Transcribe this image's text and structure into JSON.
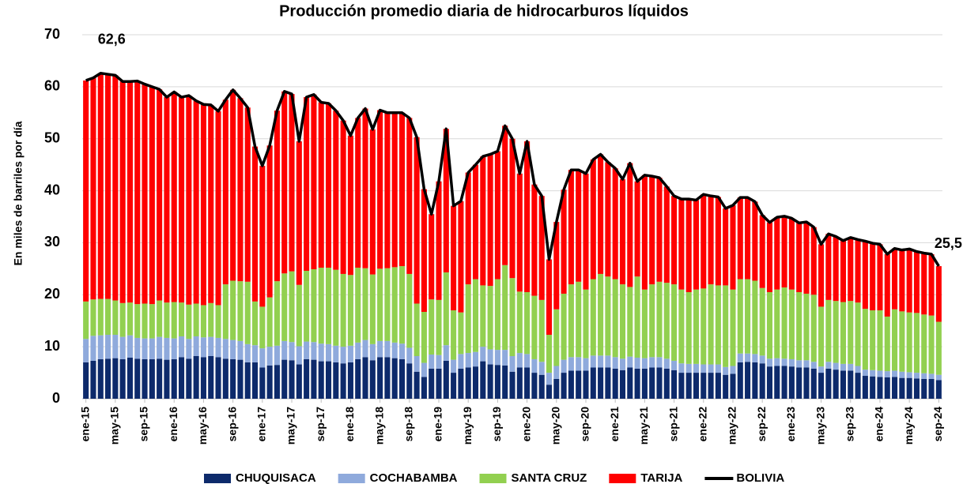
{
  "chart_data": {
    "type": "bar",
    "stacked": true,
    "title": "Producción promedio diaria de hidrocarburos líquidos",
    "y_label": "En miles de barriles por día",
    "ylim": [
      0,
      70
    ],
    "yticks": [
      0,
      10,
      20,
      30,
      40,
      50,
      60,
      70
    ],
    "grid": true,
    "legend": "bottom",
    "categories": [
      "ene-15",
      null,
      null,
      null,
      "may-15",
      null,
      null,
      null,
      "sep-15",
      null,
      null,
      null,
      "ene-16",
      null,
      null,
      null,
      "may-16",
      null,
      null,
      null,
      "sep-16",
      null,
      null,
      null,
      "ene-17",
      null,
      null,
      null,
      "may-17",
      null,
      null,
      null,
      "sep-17",
      null,
      null,
      null,
      "ene-18",
      null,
      null,
      null,
      "may-18",
      null,
      null,
      null,
      "sep-18",
      null,
      null,
      null,
      "ene-19",
      null,
      null,
      null,
      "may-19",
      null,
      null,
      null,
      "sep-19",
      null,
      null,
      null,
      "ene-20",
      null,
      null,
      null,
      "may-20",
      null,
      null,
      null,
      "sep-20",
      null,
      null,
      null,
      "ene-21",
      null,
      null,
      null,
      "may-21",
      null,
      null,
      null,
      "sep-21",
      null,
      null,
      null,
      "ene-22",
      null,
      null,
      null,
      "may-22",
      null,
      null,
      null,
      "sep-22",
      null,
      null,
      null,
      "ene-23",
      null,
      null,
      null,
      "may-23",
      null,
      null,
      null,
      "sep-23",
      null,
      null,
      null,
      "ene-24",
      null,
      null,
      null,
      "may-24",
      null,
      null,
      null,
      "sep-24"
    ],
    "series": [
      {
        "name": "CHUQUISACA",
        "color": "#0d2a6b",
        "values": [
          7.0,
          7.3,
          7.6,
          7.7,
          7.8,
          7.6,
          7.9,
          7.7,
          7.6,
          7.6,
          7.7,
          7.5,
          7.6,
          8.0,
          7.7,
          8.2,
          8.0,
          8.2,
          8.0,
          7.7,
          7.6,
          7.5,
          7.0,
          7.0,
          6.0,
          6.4,
          6.5,
          7.5,
          7.4,
          6.6,
          7.6,
          7.5,
          7.2,
          7.2,
          7.0,
          6.8,
          7.0,
          7.6,
          8.0,
          7.4,
          8.0,
          8.0,
          7.8,
          7.6,
          6.8,
          5.2,
          4.2,
          5.8,
          5.8,
          7.3,
          5.0,
          5.8,
          6.0,
          6.2,
          7.2,
          6.6,
          6.5,
          6.4,
          5.2,
          6.0,
          6.0,
          5.0,
          4.6,
          2.7,
          3.8,
          5.0,
          5.4,
          5.4,
          5.4,
          6.0,
          6.0,
          6.0,
          5.8,
          5.5,
          6.0,
          5.8,
          5.8,
          6.0,
          6.0,
          5.8,
          5.5,
          5.0,
          5.0,
          5.0,
          5.0,
          5.0,
          5.0,
          4.6,
          4.8,
          7.0,
          7.1,
          7.0,
          6.8,
          6.2,
          6.3,
          6.3,
          6.2,
          6.0,
          6.0,
          5.8,
          5.0,
          5.8,
          5.6,
          5.4,
          5.4,
          5.0,
          4.4,
          4.3,
          4.2,
          4.1,
          4.2,
          4.0,
          4.0,
          3.9,
          3.8,
          3.8,
          3.6
        ]
      },
      {
        "name": "COCHABAMBA",
        "color": "#8faadc",
        "values": [
          4.5,
          4.8,
          4.6,
          4.6,
          4.5,
          4.3,
          4.3,
          4.0,
          4.0,
          4.0,
          4.2,
          4.2,
          4.0,
          4.0,
          3.8,
          3.8,
          3.8,
          3.7,
          3.7,
          3.8,
          3.7,
          3.6,
          3.5,
          3.3,
          3.7,
          3.6,
          3.7,
          3.6,
          3.5,
          3.5,
          3.4,
          3.4,
          3.4,
          3.3,
          3.2,
          3.2,
          3.2,
          3.2,
          3.3,
          3.1,
          3.1,
          3.1,
          3.0,
          3.0,
          3.0,
          3.0,
          2.7,
          2.7,
          2.6,
          3.0,
          2.5,
          2.8,
          2.8,
          2.8,
          2.8,
          2.9,
          2.9,
          3.0,
          3.0,
          2.8,
          2.6,
          2.6,
          2.5,
          2.3,
          2.5,
          2.5,
          2.6,
          2.6,
          2.4,
          2.3,
          2.3,
          2.3,
          2.2,
          2.2,
          2.1,
          2.1,
          2.0,
          2.0,
          2.0,
          1.9,
          1.8,
          1.8,
          1.7,
          1.7,
          1.6,
          1.6,
          1.6,
          1.5,
          1.5,
          1.7,
          1.6,
          1.6,
          1.5,
          1.5,
          1.5,
          1.4,
          1.4,
          1.4,
          1.4,
          1.3,
          1.2,
          1.3,
          1.3,
          1.3,
          1.3,
          1.3,
          1.2,
          1.2,
          1.2,
          1.2,
          1.2,
          1.2,
          1.1,
          1.1,
          1.1,
          1.0,
          1.0
        ]
      },
      {
        "name": "SANTA CRUZ",
        "color": "#92d050",
        "values": [
          7.2,
          7.0,
          7.0,
          6.9,
          6.6,
          6.5,
          6.3,
          6.5,
          6.7,
          6.6,
          7.0,
          6.8,
          7.0,
          6.5,
          6.6,
          6.3,
          6.2,
          6.5,
          6.3,
          10.5,
          11.4,
          11.5,
          12.0,
          8.4,
          8.0,
          9.5,
          12.4,
          13.0,
          13.6,
          11.8,
          13.6,
          14.0,
          14.6,
          14.7,
          14.6,
          14.0,
          13.6,
          14.4,
          13.8,
          13.4,
          13.9,
          14.0,
          14.5,
          14.9,
          14.2,
          10.1,
          9.8,
          10.6,
          10.6,
          14.0,
          9.5,
          8.0,
          13.2,
          14.0,
          11.8,
          12.2,
          13.6,
          16.3,
          15.0,
          11.8,
          11.9,
          12.2,
          11.9,
          7.3,
          10.9,
          12.7,
          14.0,
          14.5,
          13.2,
          14.7,
          15.7,
          15.2,
          15.0,
          14.3,
          13.4,
          15.6,
          13.2,
          14.0,
          14.5,
          14.6,
          14.7,
          14.2,
          13.8,
          14.3,
          14.6,
          15.4,
          15.2,
          15.7,
          14.7,
          14.3,
          14.3,
          14.1,
          13.0,
          12.8,
          13.2,
          13.7,
          13.4,
          13.1,
          12.8,
          12.9,
          11.5,
          11.9,
          11.9,
          11.9,
          12.1,
          12.2,
          11.7,
          11.5,
          11.6,
          10.5,
          11.8,
          11.6,
          11.5,
          11.5,
          11.3,
          11.2,
          10.2
        ]
      },
      {
        "name": "TARIJA",
        "color": "#ff0000",
        "values": [
          42.5,
          42.6,
          43.4,
          43.2,
          43.3,
          42.6,
          42.5,
          42.9,
          42.2,
          41.8,
          40.6,
          39.5,
          40.4,
          39.5,
          40.2,
          39.0,
          38.6,
          38.1,
          37.3,
          35.5,
          36.7,
          35.2,
          33.5,
          29.8,
          27.1,
          29.2,
          32.8,
          35.0,
          34.1,
          27.6,
          33.4,
          33.6,
          31.8,
          31.6,
          30.6,
          29.5,
          26.8,
          28.8,
          30.7,
          27.9,
          30.5,
          29.9,
          29.7,
          29.5,
          30.0,
          32.0,
          23.6,
          16.4,
          22.8,
          27.6,
          20.1,
          21.4,
          21.5,
          22.0,
          24.8,
          25.3,
          24.6,
          26.8,
          26.8,
          22.7,
          29.0,
          21.4,
          20.0,
          14.5,
          16.8,
          20.0,
          22.0,
          21.5,
          22.3,
          23.0,
          23.0,
          22.0,
          21.3,
          20.2,
          23.8,
          18.3,
          22.0,
          20.8,
          20.0,
          18.5,
          17.0,
          17.4,
          17.9,
          17.2,
          18.1,
          17.0,
          17.0,
          14.8,
          16.2,
          15.7,
          15.7,
          15.2,
          14.0,
          13.4,
          13.9,
          13.7,
          13.7,
          13.3,
          13.8,
          13.0,
          12.0,
          12.7,
          12.4,
          11.8,
          12.2,
          12.1,
          13.0,
          12.9,
          12.7,
          12.0,
          11.7,
          11.8,
          12.2,
          11.8,
          11.8,
          11.8,
          10.7
        ]
      },
      {
        "name": "BOLIVIA",
        "color": "#000000",
        "type": "line",
        "values": [
          61.2,
          61.7,
          62.6,
          62.4,
          62.2,
          61.0,
          61.0,
          61.1,
          60.5,
          60.0,
          59.5,
          58.0,
          59.0,
          58.0,
          58.3,
          57.3,
          56.6,
          56.5,
          55.3,
          57.5,
          59.4,
          57.8,
          56.0,
          48.5,
          44.8,
          48.7,
          55.4,
          59.1,
          58.6,
          49.5,
          58.0,
          58.5,
          57.0,
          56.8,
          55.4,
          53.5,
          50.6,
          54.0,
          55.8,
          51.8,
          55.5,
          55.0,
          55.0,
          55.0,
          54.0,
          50.3,
          40.3,
          35.5,
          41.8,
          51.9,
          37.1,
          38.0,
          43.5,
          45.0,
          46.6,
          47.0,
          47.6,
          52.5,
          50.0,
          43.3,
          49.5,
          41.2,
          39.0,
          26.8,
          34.0,
          40.2,
          44.0,
          44.0,
          43.3,
          46.0,
          47.0,
          45.5,
          44.3,
          42.2,
          45.3,
          41.8,
          43.0,
          42.8,
          42.5,
          40.8,
          39.0,
          38.4,
          38.4,
          38.2,
          39.3,
          39.0,
          38.8,
          36.6,
          37.2,
          38.7,
          38.7,
          37.9,
          35.3,
          33.9,
          34.9,
          35.1,
          34.7,
          33.8,
          34.0,
          33.0,
          29.7,
          31.7,
          31.2,
          30.4,
          31.0,
          30.6,
          30.3,
          29.9,
          29.7,
          27.8,
          28.9,
          28.6,
          28.8,
          28.3,
          28.0,
          27.8,
          25.5
        ],
        "value_labels": [
          null,
          null,
          "62,6",
          null,
          null,
          null,
          null,
          null,
          null,
          null,
          null,
          null,
          null,
          null,
          null,
          null,
          null,
          null,
          null,
          null,
          null,
          null,
          null,
          null,
          null,
          null,
          null,
          null,
          null,
          null,
          null,
          null,
          null,
          null,
          null,
          null,
          null,
          null,
          null,
          null,
          null,
          null,
          null,
          null,
          null,
          null,
          null,
          null,
          null,
          null,
          null,
          null,
          null,
          null,
          null,
          null,
          null,
          null,
          null,
          null,
          null,
          null,
          null,
          null,
          null,
          null,
          null,
          null,
          null,
          null,
          null,
          null,
          null,
          null,
          null,
          null,
          null,
          null,
          null,
          null,
          null,
          null,
          null,
          null,
          null,
          null,
          null,
          null,
          null,
          null,
          null,
          null,
          null,
          null,
          null,
          null,
          null,
          null,
          null,
          null,
          null,
          null,
          null,
          null,
          null,
          null,
          null,
          null,
          null,
          null,
          null,
          null,
          null,
          null,
          null,
          null,
          "25,5"
        ]
      }
    ]
  }
}
